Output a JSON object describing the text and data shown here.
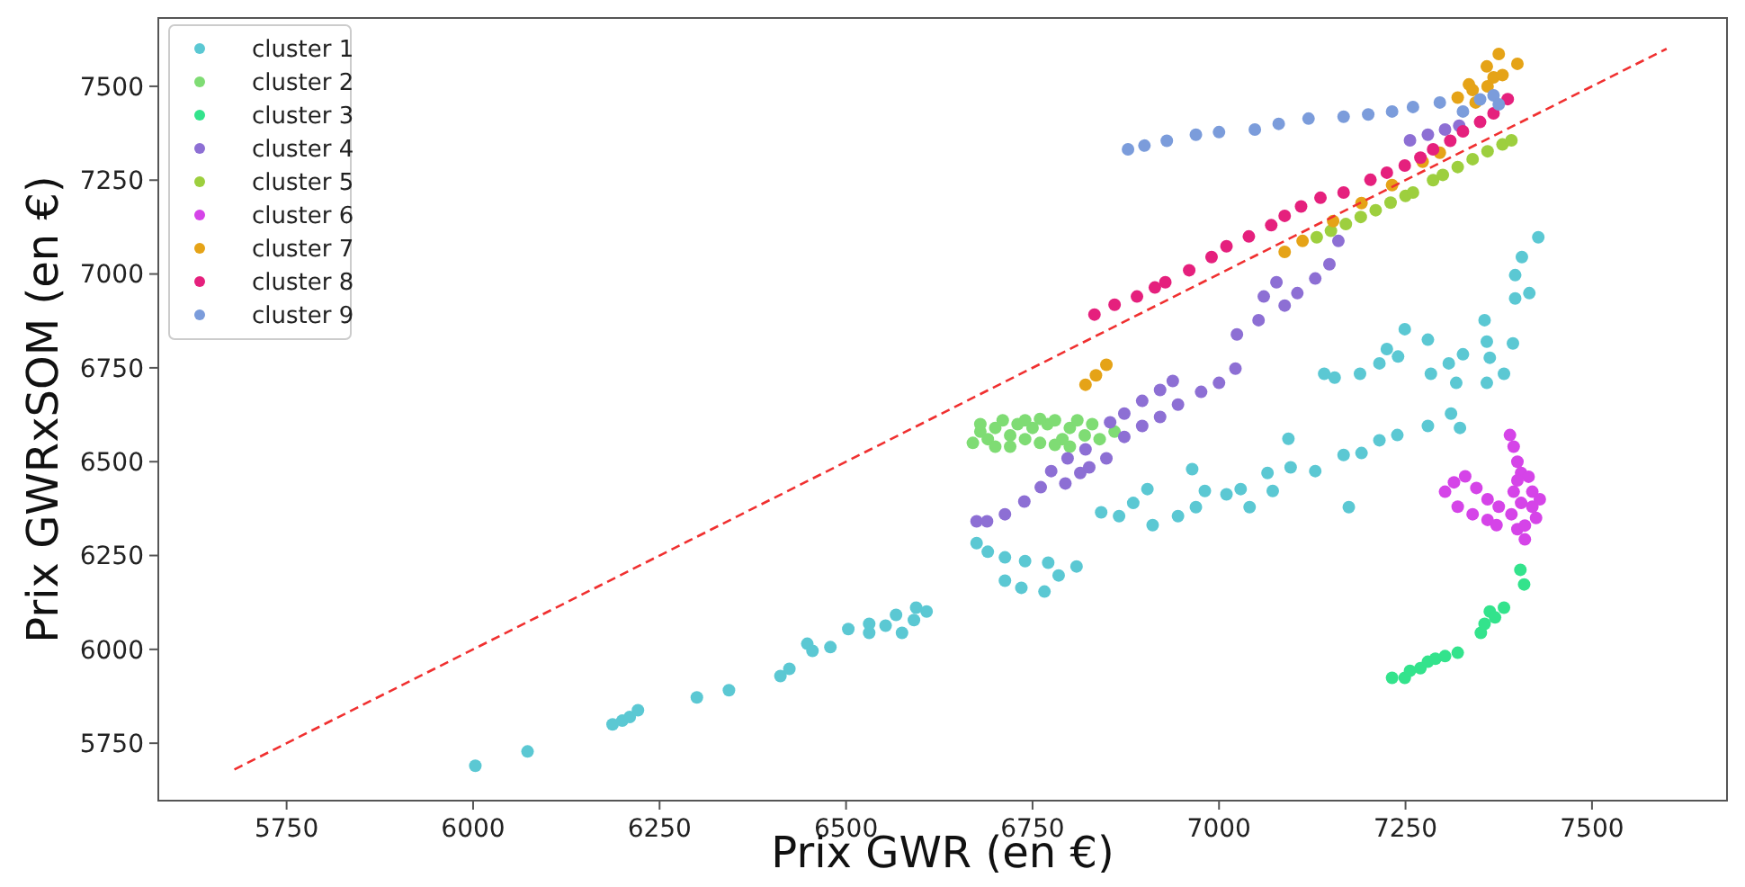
{
  "chart_data": {
    "type": "scatter",
    "xlabel": "Prix GWR (en €)",
    "ylabel": "Prix GWRxSOM (en €)",
    "xlim": [
      5578,
      7681
    ],
    "ylim": [
      5597,
      7682
    ],
    "xticks": [
      5750,
      6000,
      6250,
      6500,
      6750,
      7000,
      7250,
      7500
    ],
    "yticks": [
      5750,
      6000,
      6250,
      6500,
      6750,
      7000,
      7250,
      7500
    ],
    "grid": false,
    "legend": "top left",
    "marker": "circle",
    "series": [
      {
        "name": "cluster 1",
        "color": "#5bc8d3",
        "x": [
          6003,
          6073,
          6187,
          6200,
          6210,
          6221,
          6300,
          6343,
          6412,
          6424,
          6448,
          6455,
          6479,
          6503,
          6531,
          6531,
          6553,
          6567,
          6575,
          6594,
          6591,
          6608,
          6675,
          6690,
          6713,
          6740,
          6771,
          6809,
          6713,
          6735,
          6766,
          6785,
          6842,
          6866,
          6885,
          6904,
          6911,
          6964,
          6945,
          6969,
          6981,
          7010,
          7029,
          7041,
          7065,
          7072,
          7093,
          7096,
          7129,
          7167,
          7174,
          7191,
          7215,
          7239,
          7280,
          7311,
          7323,
          7141,
          7155,
          7189,
          7215,
          7249,
          7280,
          7225,
          7240,
          7428,
          7406,
          7397,
          7397,
          7416,
          7356,
          7359,
          7363,
          7394,
          7359,
          7382,
          7284,
          7308,
          7327,
          7318
        ],
        "values": [
          5690,
          5728,
          5800,
          5810,
          5820,
          5838,
          5872,
          5891,
          5929,
          5948,
          6015,
          5996,
          6006,
          6054,
          6068,
          6044,
          6063,
          6092,
          6044,
          6111,
          6078,
          6101,
          6283,
          6260,
          6245,
          6235,
          6231,
          6221,
          6183,
          6164,
          6154,
          6197,
          6365,
          6355,
          6390,
          6427,
          6331,
          6480,
          6355,
          6379,
          6422,
          6413,
          6427,
          6379,
          6470,
          6422,
          6561,
          6485,
          6475,
          6518,
          6379,
          6523,
          6557,
          6571,
          6595,
          6628,
          6590,
          6734,
          6724,
          6734,
          6762,
          6853,
          6825,
          6800,
          6780,
          7098,
          7045,
          6997,
          6935,
          6949,
          6877,
          6820,
          6777,
          6815,
          6710,
          6734,
          6734,
          6762,
          6786,
          6710
        ]
      },
      {
        "name": "cluster 2",
        "color": "#7fdc74",
        "x": [
          6670,
          6680,
          6690,
          6700,
          6710,
          6720,
          6730,
          6740,
          6750,
          6760,
          6770,
          6780,
          6790,
          6800,
          6810,
          6820,
          6830,
          6840,
          6860,
          6700,
          6740,
          6780,
          6760,
          6720,
          6800,
          6680
        ],
        "values": [
          6550,
          6580,
          6560,
          6590,
          6610,
          6570,
          6600,
          6560,
          6590,
          6550,
          6600,
          6610,
          6560,
          6590,
          6610,
          6570,
          6600,
          6560,
          6580,
          6540,
          6610,
          6545,
          6614,
          6540,
          6540,
          6600
        ]
      },
      {
        "name": "cluster 3",
        "color": "#33e38c",
        "x": [
          7232,
          7249,
          7256,
          7270,
          7280,
          7290,
          7303,
          7320,
          7351,
          7356,
          7363,
          7370,
          7382,
          7404,
          7409
        ],
        "values": [
          5924,
          5924,
          5943,
          5950,
          5967,
          5975,
          5982,
          5991,
          6044,
          6068,
          6101,
          6085,
          6111,
          6212,
          6173
        ]
      },
      {
        "name": "cluster 4",
        "color": "#8d6fd4",
        "x": [
          6675,
          6689,
          6713,
          6739,
          6761,
          6775,
          6794,
          6797,
          6814,
          6821,
          6826,
          6849,
          6854,
          6873,
          6897,
          6921,
          6938,
          6873,
          6897,
          6921,
          6945,
          6976,
          7000,
          7022,
          7024,
          7053,
          7060,
          7077,
          7088,
          7105,
          7129,
          7148,
          7160,
          7256,
          7280,
          7303,
          7322
        ],
        "values": [
          6341,
          6341,
          6360,
          6394,
          6432,
          6475,
          6442,
          6509,
          6470,
          6533,
          6485,
          6509,
          6605,
          6628,
          6662,
          6691,
          6715,
          6566,
          6595,
          6619,
          6652,
          6686,
          6710,
          6748,
          6839,
          6877,
          6940,
          6978,
          6916,
          6949,
          6988,
          7026,
          7088,
          7356,
          7371,
          7385,
          7395
        ]
      },
      {
        "name": "cluster 5",
        "color": "#9dcf3e",
        "x": [
          7131,
          7150,
          7170,
          7190,
          7210,
          7230,
          7250,
          7260,
          7287,
          7300,
          7320,
          7340,
          7360,
          7380,
          7392
        ],
        "values": [
          7098,
          7115,
          7133,
          7152,
          7170,
          7190,
          7208,
          7217,
          7250,
          7264,
          7285,
          7306,
          7327,
          7345,
          7356
        ]
      },
      {
        "name": "cluster 6",
        "color": "#d544e8",
        "x": [
          7390,
          7395,
          7400,
          7405,
          7420,
          7425,
          7400,
          7410,
          7395,
          7405,
          7415,
          7392,
          7420,
          7400,
          7430,
          7410,
          7303,
          7315,
          7330,
          7345,
          7360,
          7375,
          7320,
          7340,
          7360,
          7372
        ],
        "values": [
          6571,
          6540,
          6500,
          6470,
          6380,
          6350,
          6320,
          6293,
          6420,
          6390,
          6460,
          6360,
          6420,
          6450,
          6400,
          6330,
          6420,
          6445,
          6461,
          6430,
          6400,
          6380,
          6380,
          6360,
          6345,
          6331
        ]
      },
      {
        "name": "cluster 7",
        "color": "#e5a317",
        "x": [
          6821,
          6835,
          6849,
          7088,
          7112,
          7153,
          7191,
          7232,
          7273,
          7296,
          7335,
          7359,
          7375,
          7400,
          7344,
          7368,
          7320,
          7340,
          7360,
          7380
        ],
        "values": [
          6705,
          6730,
          6758,
          7059,
          7088,
          7141,
          7189,
          7237,
          7299,
          7323,
          7505,
          7553,
          7586,
          7560,
          7457,
          7524,
          7470,
          7490,
          7500,
          7530
        ]
      },
      {
        "name": "cluster 8",
        "color": "#e5207d",
        "x": [
          6833,
          6860,
          6890,
          6914,
          6928,
          6960,
          6990,
          7010,
          7040,
          7070,
          7088,
          7110,
          7136,
          7167,
          7203,
          7225,
          7249,
          7270,
          7287,
          7310,
          7327,
          7350,
          7368,
          7387
        ],
        "values": [
          6892,
          6918,
          6940,
          6964,
          6978,
          7010,
          7045,
          7074,
          7100,
          7130,
          7155,
          7180,
          7203,
          7217,
          7251,
          7270,
          7289,
          7310,
          7332,
          7355,
          7380,
          7405,
          7428,
          7466
        ]
      },
      {
        "name": "cluster 9",
        "color": "#7b9cdb",
        "x": [
          6878,
          6900,
          6930,
          6969,
          7000,
          7048,
          7080,
          7120,
          7167,
          7200,
          7232,
          7260,
          7296,
          7327,
          7350,
          7368,
          7375
        ],
        "values": [
          7332,
          7342,
          7355,
          7371,
          7378,
          7385,
          7400,
          7414,
          7419,
          7425,
          7433,
          7445,
          7457,
          7433,
          7465,
          7476,
          7452
        ]
      },
      {
        "type": "line",
        "color": "#f03030",
        "line_style": "dashed",
        "marker": "none",
        "x": [
          5680,
          7600
        ],
        "values": [
          5680,
          7600
        ]
      }
    ]
  }
}
